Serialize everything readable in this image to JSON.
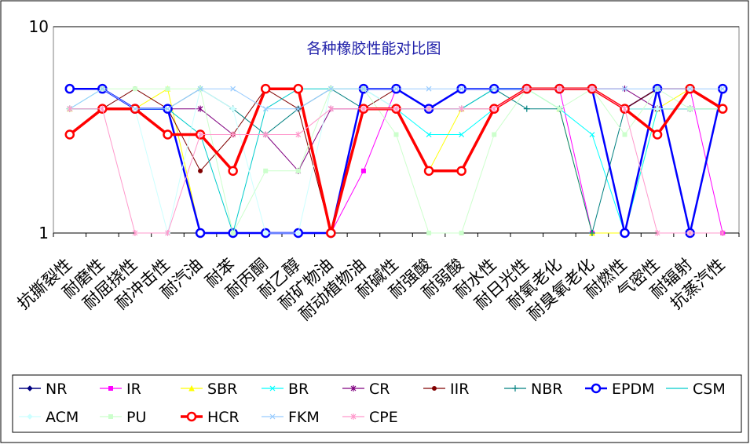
{
  "chart_data": {
    "type": "line",
    "title": "各种橡胶性能对比图",
    "xlabel": "",
    "ylabel": "",
    "y_scale": "log",
    "ylim": [
      1,
      10
    ],
    "y_ticks": [
      "1",
      "10"
    ],
    "grid": "horizontal",
    "legend_position": "bottom",
    "categories": [
      "抗撕裂性",
      "耐磨性",
      "耐屈挠性",
      "耐冲击性",
      "耐汽油",
      "耐苯",
      "耐丙酮",
      "耐乙醇",
      "耐矿物油",
      "耐动植物油",
      "耐碱性",
      "耐强酸",
      "耐弱酸",
      "耐水性",
      "耐日光性",
      "耐氧老化",
      "耐臭氧老化",
      "耐燃性",
      "气密性",
      "耐辐射",
      "抗蒸汽性"
    ],
    "series": [
      {
        "name": "NR",
        "color": "#000080",
        "marker": "diamond",
        "width": 1.5,
        "values": [
          5,
          5,
          4,
          4,
          1,
          1,
          1,
          1,
          1,
          5,
          5,
          4,
          5,
          5,
          5,
          5,
          5,
          4,
          5,
          1,
          5
        ]
      },
      {
        "name": "IR",
        "color": "#ff00ff",
        "marker": "square",
        "width": 1,
        "values": [
          5,
          5,
          4,
          4,
          1,
          1,
          1,
          1,
          1,
          2,
          5,
          4,
          5,
          5,
          5,
          5,
          1,
          1,
          5,
          5,
          1
        ]
      },
      {
        "name": "SBR",
        "color": "#ffff00",
        "marker": "triangle",
        "width": 1,
        "values": [
          4,
          4,
          4,
          5,
          1,
          1,
          1,
          1,
          1,
          4,
          4,
          2,
          4,
          4,
          5,
          4,
          1,
          1,
          4,
          5,
          4
        ]
      },
      {
        "name": "BR",
        "color": "#00ffff",
        "marker": "x",
        "width": 1,
        "values": [
          4,
          5,
          4,
          4,
          1,
          1,
          1,
          1,
          1,
          4,
          4,
          3,
          3,
          4,
          5,
          4,
          3,
          1,
          4,
          4,
          4
        ]
      },
      {
        "name": "CR",
        "color": "#800080",
        "marker": "star",
        "width": 1,
        "values": [
          4,
          4,
          4,
          4,
          4,
          3,
          3,
          2,
          4,
          4,
          4,
          4,
          4,
          4,
          5,
          5,
          5,
          5,
          4,
          4,
          4
        ]
      },
      {
        "name": "IIR",
        "color": "#800000",
        "marker": "dot",
        "width": 1,
        "values": [
          4,
          4,
          5,
          4,
          2,
          3,
          5,
          4,
          1,
          4,
          5,
          4,
          5,
          5,
          5,
          5,
          5,
          4,
          5,
          5,
          4
        ]
      },
      {
        "name": "NBR",
        "color": "#008080",
        "marker": "plus",
        "width": 1,
        "values": [
          4,
          4,
          4,
          4,
          5,
          4,
          3,
          4,
          5,
          4,
          4,
          4,
          4,
          5,
          4,
          4,
          1,
          4,
          4,
          4,
          4
        ]
      },
      {
        "name": "EPDM",
        "color": "#0000ff",
        "marker": "circle",
        "width": 2.5,
        "values": [
          5,
          5,
          4,
          4,
          1,
          1,
          1,
          1,
          1,
          5,
          5,
          4,
          5,
          5,
          5,
          5,
          5,
          1,
          5,
          1,
          5
        ]
      },
      {
        "name": "CSM",
        "color": "#00cccc",
        "marker": "none",
        "width": 1,
        "values": [
          4,
          4,
          4,
          4,
          3,
          1,
          4,
          5,
          5,
          5,
          4,
          4,
          4,
          5,
          5,
          5,
          5,
          4,
          4,
          4,
          4
        ]
      },
      {
        "name": "ACM",
        "color": "#ccffff",
        "marker": "diamond",
        "width": 1,
        "values": [
          4,
          4,
          4,
          1,
          5,
          4,
          1,
          1,
          5,
          5,
          4,
          4,
          4,
          4,
          5,
          5,
          5,
          4,
          4,
          4,
          4
        ]
      },
      {
        "name": "PU",
        "color": "#ccffcc",
        "marker": "square",
        "width": 1,
        "values": [
          4,
          5,
          5,
          5,
          5,
          1,
          2,
          2,
          5,
          5,
          3,
          1,
          1,
          3,
          5,
          4,
          5,
          3,
          5,
          4,
          4
        ]
      },
      {
        "name": "HCR",
        "color": "#ff0000",
        "marker": "circle",
        "width": 3.5,
        "values": [
          3,
          4,
          4,
          3,
          3,
          2,
          5,
          5,
          1,
          4,
          4,
          2,
          2,
          4,
          5,
          5,
          5,
          4,
          3,
          5,
          4
        ]
      },
      {
        "name": "FKM",
        "color": "#99ccff",
        "marker": "x",
        "width": 1,
        "values": [
          4,
          5,
          4,
          4,
          5,
          5,
          4,
          4,
          5,
          5,
          5,
          5,
          5,
          5,
          5,
          5,
          5,
          5,
          5,
          5,
          5
        ]
      },
      {
        "name": "CPE",
        "color": "#ff99cc",
        "marker": "star",
        "width": 1,
        "values": [
          4,
          4,
          1,
          1,
          3,
          3,
          3,
          3,
          4,
          4,
          4,
          4,
          4,
          4,
          5,
          5,
          5,
          4,
          1,
          1,
          1
        ]
      }
    ]
  }
}
